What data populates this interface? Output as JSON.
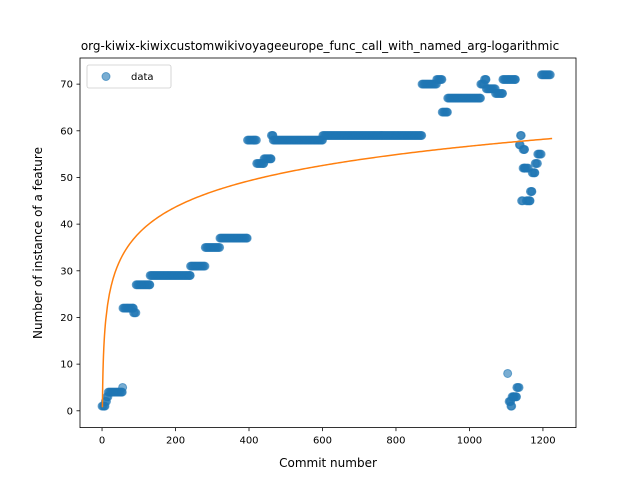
{
  "chart_data": {
    "type": "scatter",
    "title": "org-kiwix-kiwixcustomwikivoyageeurope_func_call_with_named_arg-logarithmic",
    "xlabel": "Commit number",
    "ylabel": "Number of instance of a feature",
    "xlim": [
      -60,
      1290
    ],
    "ylim": [
      -3.6,
      75.6
    ],
    "xticks": [
      0,
      200,
      400,
      600,
      800,
      1000,
      1200
    ],
    "yticks": [
      0,
      10,
      20,
      30,
      40,
      50,
      60,
      70
    ],
    "grid": false,
    "legend": {
      "position": "top-left",
      "entries": [
        "data"
      ]
    },
    "colors": {
      "data": "#1f77b4",
      "fit": "#ff7f0e"
    },
    "series": [
      {
        "name": "data",
        "kind": "points",
        "segments": [
          [
            0,
            8,
            1
          ],
          [
            9,
            12,
            2
          ],
          [
            13,
            16,
            3
          ],
          [
            17,
            55,
            4
          ],
          [
            56,
            56,
            5
          ],
          [
            57,
            85,
            22
          ],
          [
            86,
            92,
            21
          ],
          [
            93,
            130,
            27
          ],
          [
            131,
            240,
            29
          ],
          [
            241,
            280,
            31
          ],
          [
            281,
            320,
            35
          ],
          [
            321,
            395,
            37
          ],
          [
            396,
            420,
            58
          ],
          [
            421,
            440,
            53
          ],
          [
            441,
            460,
            54
          ],
          [
            461,
            465,
            59
          ],
          [
            466,
            600,
            58
          ],
          [
            601,
            870,
            59
          ],
          [
            871,
            910,
            70
          ],
          [
            911,
            925,
            71
          ],
          [
            926,
            940,
            64
          ],
          [
            941,
            1030,
            67
          ],
          [
            1031,
            1040,
            70
          ],
          [
            1041,
            1045,
            71
          ],
          [
            1046,
            1070,
            69
          ],
          [
            1071,
            1090,
            68
          ],
          [
            1091,
            1125,
            71
          ],
          [
            1104,
            1104,
            8
          ],
          [
            1108,
            1112,
            2
          ],
          [
            1113,
            1115,
            1
          ],
          [
            1116,
            1120,
            3
          ],
          [
            1121,
            1128,
            3
          ],
          [
            1129,
            1135,
            5
          ],
          [
            1136,
            1138,
            57
          ],
          [
            1139,
            1141,
            59
          ],
          [
            1142,
            1145,
            45
          ],
          [
            1146,
            1150,
            56
          ],
          [
            1146,
            1150,
            52
          ],
          [
            1151,
            1160,
            52
          ],
          [
            1155,
            1165,
            45
          ],
          [
            1166,
            1170,
            47
          ],
          [
            1171,
            1178,
            51
          ],
          [
            1179,
            1185,
            53
          ],
          [
            1186,
            1195,
            55
          ],
          [
            1196,
            1220,
            72
          ]
        ]
      },
      {
        "kind": "line",
        "model": "logarithmic",
        "a": 8.1,
        "b": 0.75,
        "x_range": [
          1,
          1225
        ]
      }
    ]
  }
}
